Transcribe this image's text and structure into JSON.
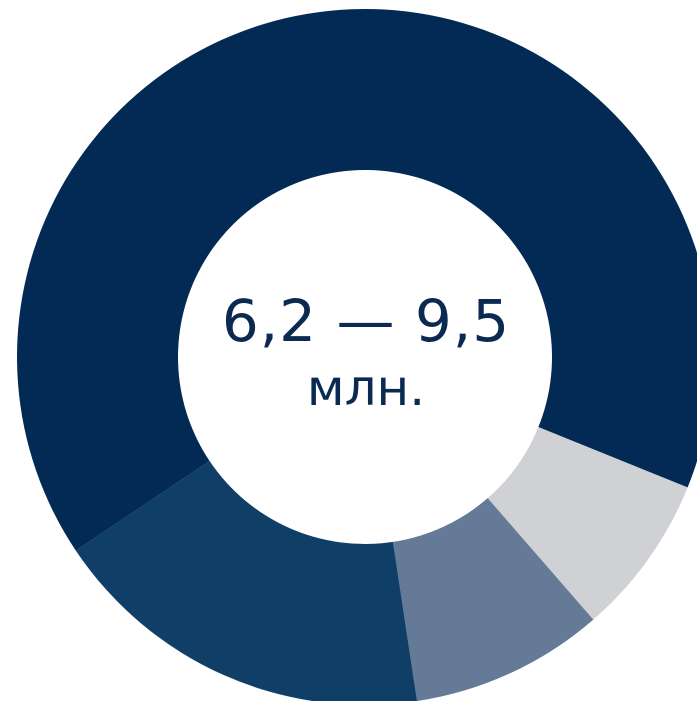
{
  "chart_data": {
    "type": "pie",
    "style": "donut",
    "center_label": {
      "value": "6,2 — 9,5",
      "unit": "млн."
    },
    "slices": [
      {
        "value": 65.5,
        "color": "#022a54"
      },
      {
        "value": 7.5,
        "color": "#d0d1d5"
      },
      {
        "value": 9.0,
        "color": "#647a97"
      },
      {
        "value": 18.0,
        "color": "#0f3e66"
      }
    ]
  }
}
